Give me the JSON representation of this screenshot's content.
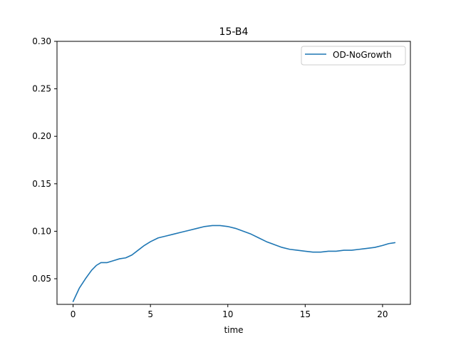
{
  "chart_data": {
    "type": "line",
    "title": "15-B4",
    "xlabel": "time",
    "ylabel": "",
    "xlim": [
      -1.04,
      21.8
    ],
    "ylim": [
      0.023,
      0.3
    ],
    "xticks": [
      0,
      5,
      10,
      15,
      20
    ],
    "yticks": [
      0.05,
      0.1,
      0.15,
      0.2,
      0.25,
      0.3
    ],
    "xtick_labels": [
      "0",
      "5",
      "10",
      "15",
      "20"
    ],
    "ytick_labels": [
      "0.05",
      "0.10",
      "0.15",
      "0.20",
      "0.25",
      "0.30"
    ],
    "legend_position": "top-right",
    "grid": false,
    "series": [
      {
        "name": "OD-NoGrowth",
        "color": "#1f77b4",
        "x": [
          0,
          0.4,
          0.8,
          1.2,
          1.5,
          1.8,
          2.2,
          2.6,
          3.0,
          3.4,
          3.8,
          4.2,
          4.6,
          5.0,
          5.5,
          6.0,
          6.5,
          7.0,
          7.5,
          8.0,
          8.5,
          9.0,
          9.5,
          10.0,
          10.5,
          11.0,
          11.5,
          12.0,
          12.5,
          13.0,
          13.5,
          14.0,
          14.5,
          15.0,
          15.5,
          16.0,
          16.5,
          17.0,
          17.5,
          18.0,
          18.5,
          19.0,
          19.5,
          20.0,
          20.4,
          20.8
        ],
        "y": [
          0.026,
          0.04,
          0.05,
          0.059,
          0.064,
          0.067,
          0.067,
          0.069,
          0.071,
          0.072,
          0.075,
          0.08,
          0.085,
          0.089,
          0.093,
          0.095,
          0.097,
          0.099,
          0.101,
          0.103,
          0.105,
          0.106,
          0.106,
          0.105,
          0.103,
          0.1,
          0.097,
          0.093,
          0.089,
          0.086,
          0.083,
          0.081,
          0.08,
          0.079,
          0.078,
          0.078,
          0.079,
          0.079,
          0.08,
          0.08,
          0.081,
          0.082,
          0.083,
          0.085,
          0.087,
          0.088
        ]
      }
    ]
  }
}
